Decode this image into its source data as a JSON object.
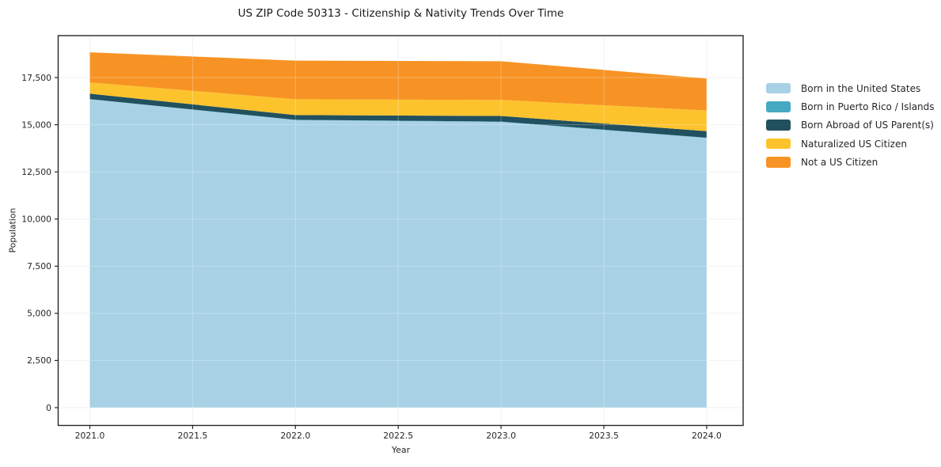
{
  "chart_data": {
    "type": "area",
    "stacked": true,
    "title": "US ZIP Code 50313 - Citizenship & Nativity Trends Over Time",
    "xlabel": "Year",
    "ylabel": "Population",
    "x": [
      2021,
      2022,
      2023,
      2024
    ],
    "x_ticks": [
      2021.0,
      2021.5,
      2022.0,
      2022.5,
      2023.0,
      2023.5,
      2024.0
    ],
    "x_tick_labels": [
      "2021.0",
      "2021.5",
      "2022.0",
      "2022.5",
      "2023.0",
      "2023.5",
      "2024.0"
    ],
    "y_ticks": [
      0,
      2500,
      5000,
      7500,
      10000,
      12500,
      15000,
      17500
    ],
    "y_tick_labels": [
      "0",
      "2,500",
      "5,000",
      "7,500",
      "10,000",
      "12,500",
      "15,000",
      "17,500"
    ],
    "ylim": [
      0,
      19700
    ],
    "grid": true,
    "legend_position": "right of plot",
    "series": [
      {
        "name": "Born in the United States",
        "color": "#a8d1e5",
        "values": [
          16350,
          15250,
          15150,
          14300
        ]
      },
      {
        "name": "Born in Puerto Rico / Islands",
        "color": "#46a9c2",
        "values": [
          10,
          10,
          15,
          10
        ]
      },
      {
        "name": "Born Abroad of US Parent(s)",
        "color": "#21505e",
        "values": [
          290,
          250,
          300,
          350
        ]
      },
      {
        "name": "Naturalized US Citizen",
        "color": "#fdc32d",
        "values": [
          590,
          840,
          850,
          1090
        ]
      },
      {
        "name": "Not a US Citizen",
        "color": "#f79324",
        "values": [
          1600,
          2050,
          2050,
          1700
        ]
      }
    ],
    "totals_by_year": [
      18840,
      18400,
      18365,
      17450
    ],
    "axis_color": "#262626",
    "grid_color": "#ededed"
  }
}
